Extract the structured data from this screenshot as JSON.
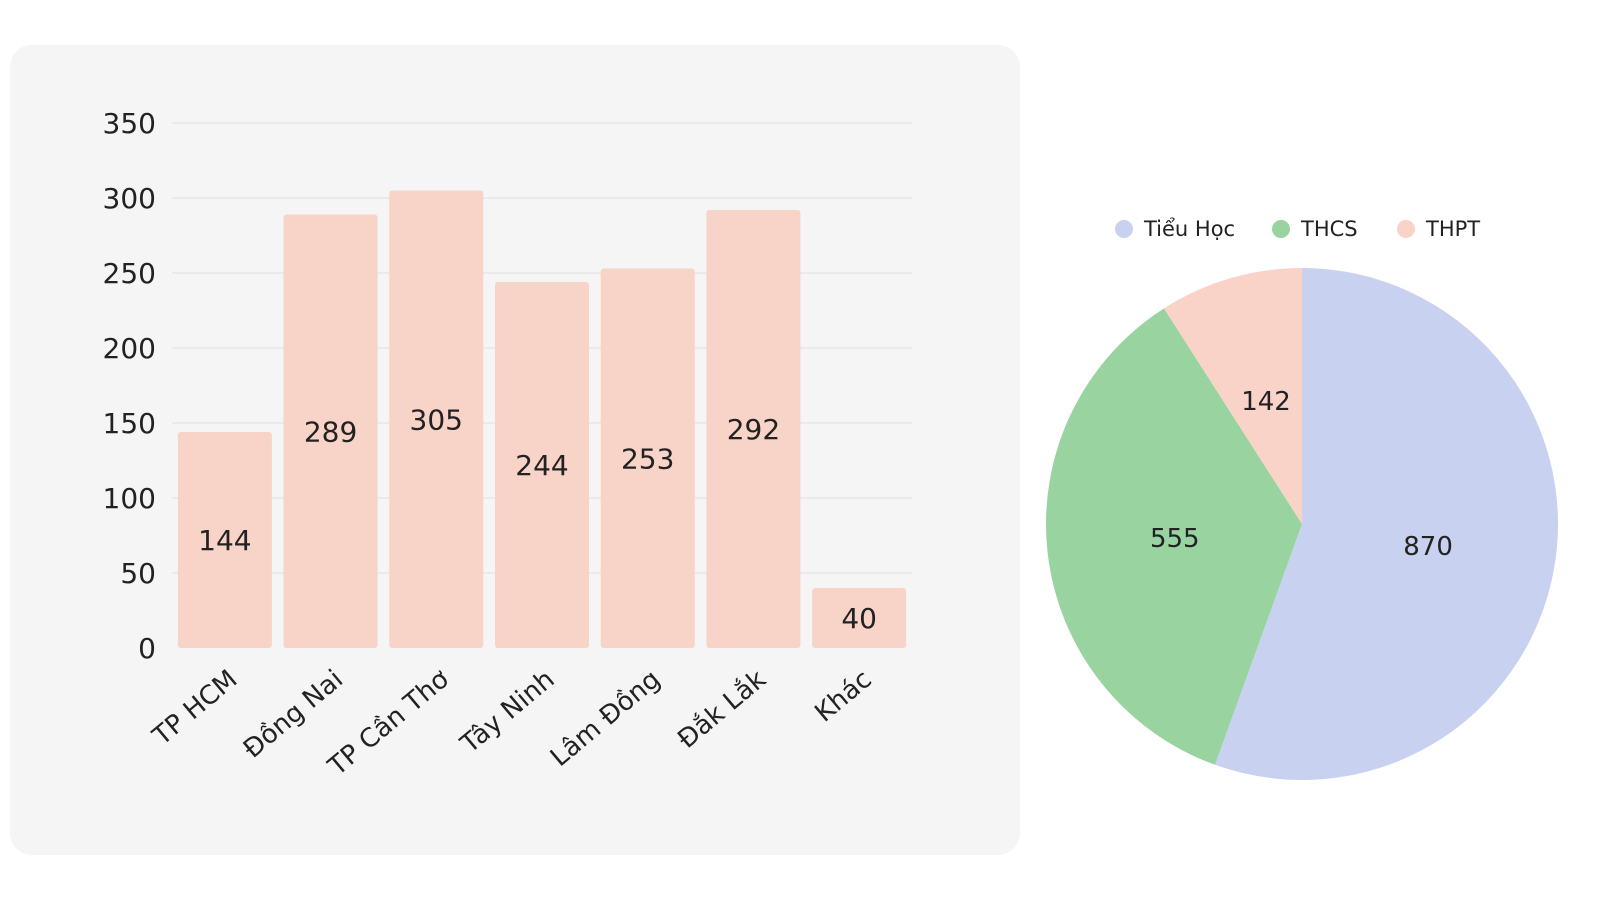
{
  "chart_data": [
    {
      "type": "bar",
      "categories": [
        "TP HCM",
        "Đồng Nai",
        "TP Cần Thơ",
        "Tây Ninh",
        "Lâm Đồng",
        "Đắk Lắk",
        "Khác"
      ],
      "values": [
        144,
        289,
        305,
        244,
        253,
        292,
        40
      ],
      "data_labels": [
        "144",
        "289",
        "305",
        "244",
        "253",
        "292",
        "40"
      ],
      "yticks": [
        0,
        50,
        100,
        150,
        200,
        250,
        300,
        350
      ],
      "ylim": [
        0,
        350
      ],
      "grid": true,
      "bar_color": "#f8d3c8",
      "grid_color": "#e6e6e6",
      "background": "#f5f5f5"
    },
    {
      "type": "pie",
      "legend_position": "top",
      "slices": [
        {
          "label": "Tiểu Học",
          "value": 870,
          "value_label": "870",
          "color": "#c8d1ef"
        },
        {
          "label": "THCS",
          "value": 555,
          "value_label": "555",
          "color": "#98d3a0"
        },
        {
          "label": "THPT",
          "value": 142,
          "value_label": "142",
          "color": "#f9d3c8"
        }
      ]
    }
  ]
}
